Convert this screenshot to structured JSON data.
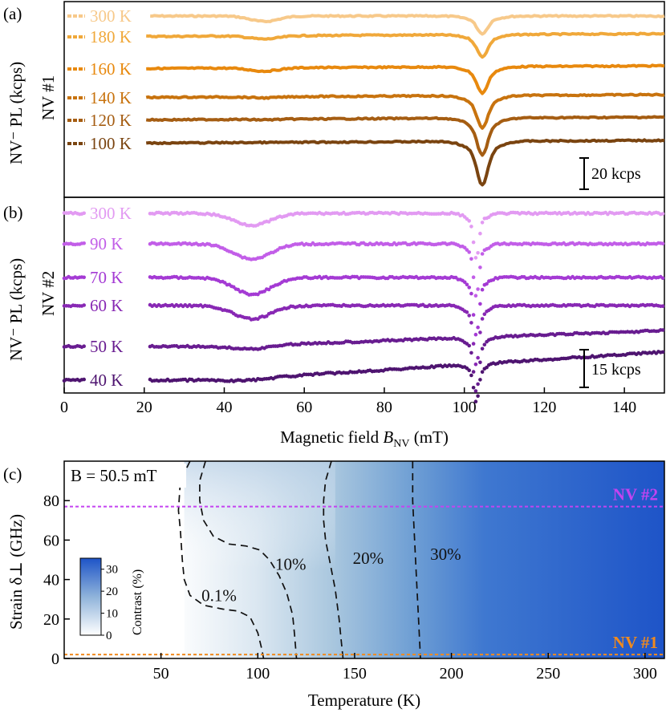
{
  "colors": {
    "nv1": [
      "#f7c98a",
      "#f0a83a",
      "#e8890e",
      "#c8730e",
      "#a55d12",
      "#7a4410"
    ],
    "nv2": [
      "#e29af2",
      "#c25ee8",
      "#a43ad4",
      "#8828b4",
      "#681c90",
      "#4e1470"
    ],
    "nv1_line": "#f08a1e",
    "nv2_line": "#c443f0",
    "heat_low": "#ffffff",
    "heat_high": "#1e54c8"
  },
  "chart_data": [
    {
      "type": "line",
      "panel_label": "(a)",
      "ylabel": "NV⁻ PL (kcps)",
      "side_label": "NV #1",
      "xlim": [
        0,
        150
      ],
      "dip_centers_mT": [
        50,
        104.5
      ],
      "scale_bar": {
        "label": "20 kcps",
        "value": 20
      },
      "series": [
        {
          "name": "300 K",
          "offset": 0,
          "dip1_depth": 5,
          "dip2_depth": 12,
          "slope": 0
        },
        {
          "name": "180 K",
          "offset": -8,
          "dip1_depth": 3,
          "dip2_depth": 15,
          "slope": 0.02
        },
        {
          "name": "160 K",
          "offset": -16,
          "dip1_depth": 3,
          "dip2_depth": 18,
          "slope": 0.02
        },
        {
          "name": "140 K",
          "offset": -25,
          "dip1_depth": 1,
          "dip2_depth": 22,
          "slope": 0.02
        },
        {
          "name": "120 K",
          "offset": -33,
          "dip1_depth": 0.5,
          "dip2_depth": 25,
          "slope": 0.02
        },
        {
          "name": "100 K",
          "offset": -41,
          "dip1_depth": 0,
          "dip2_depth": 30,
          "slope": 0.02
        }
      ]
    },
    {
      "type": "scatter",
      "panel_label": "(b)",
      "ylabel": "NV⁻ PL (kcps)",
      "side_label": "NV #2",
      "xlabel": "Magnetic field B_NV (mT)",
      "xlabel_main": "Magnetic field ",
      "xlabel_var": "B",
      "xlabel_sub": "NV",
      "xlabel_unit": " (mT)",
      "xlim": [
        0,
        150
      ],
      "xticks": [
        0,
        20,
        40,
        60,
        80,
        100,
        120,
        140
      ],
      "xtick_labels": [
        "0",
        "20",
        "40",
        "60",
        "80",
        "100",
        "120",
        "140"
      ],
      "dip_centers_mT": [
        47,
        103
      ],
      "scale_bar": {
        "label": "15 kcps",
        "value": 15
      },
      "series": [
        {
          "name": "300 K",
          "offset": 0,
          "dip1_depth": 7,
          "dip2_depth": 22,
          "slope": 0
        },
        {
          "name": "90 K",
          "offset": -6,
          "dip1_depth": 9,
          "dip2_depth": 25,
          "slope": 0.01
        },
        {
          "name": "70 K",
          "offset": -12,
          "dip1_depth": 10,
          "dip2_depth": 28,
          "slope": 0.02
        },
        {
          "name": "60 K",
          "offset": -18,
          "dip1_depth": 8,
          "dip2_depth": 29,
          "slope": 0.03
        },
        {
          "name": "50 K",
          "offset": -25,
          "dip1_depth": 2,
          "dip2_depth": 26,
          "slope": 0.08
        },
        {
          "name": "40 K",
          "offset": -30,
          "dip1_depth": 1,
          "dip2_depth": 18,
          "slope": 0.12
        }
      ]
    },
    {
      "type": "heatmap",
      "panel_label": "(c)",
      "title": "B = 50.5 mT",
      "xlabel": "Temperature (K)",
      "ylabel": "Strain δ⊥ (GHz)",
      "xlim": [
        0,
        310
      ],
      "ylim": [
        0,
        100
      ],
      "xticks": [
        50,
        100,
        150,
        200,
        250,
        300
      ],
      "xtick_labels": [
        "50",
        "100",
        "150",
        "200",
        "250",
        "300"
      ],
      "yticks": [
        0,
        20,
        40,
        60,
        80
      ],
      "ytick_labels": [
        "0",
        "20",
        "40",
        "60",
        "80"
      ],
      "colorbar": {
        "label": "Contrast (%)",
        "ticks": [
          "0",
          "10",
          "20",
          "30"
        ],
        "max": 35
      },
      "contours": [
        {
          "label": "0.1%",
          "points": [
            [
              65,
              100
            ],
            [
              60,
              90
            ],
            [
              59,
              75
            ],
            [
              60,
              65
            ],
            [
              61,
              50
            ],
            [
              62,
              40
            ],
            [
              65,
              32
            ],
            [
              72,
              27
            ],
            [
              82,
              25
            ],
            [
              90,
              24
            ],
            [
              96,
              21
            ],
            [
              100,
              13
            ],
            [
              102,
              5
            ],
            [
              103,
              0
            ]
          ]
        },
        {
          "label": "10%",
          "points": [
            [
              73,
              100
            ],
            [
              70,
              90
            ],
            [
              70,
              80
            ],
            [
              72,
              70
            ],
            [
              77,
              62
            ],
            [
              85,
              58
            ],
            [
              94,
              57
            ],
            [
              101,
              55
            ],
            [
              106,
              50
            ],
            [
              111,
              42
            ],
            [
              115,
              33
            ],
            [
              118,
              22
            ],
            [
              119,
              12
            ],
            [
              120,
              0
            ]
          ]
        },
        {
          "label": "20%",
          "points": [
            [
              138,
              100
            ],
            [
              135,
              90
            ],
            [
              134,
              80
            ],
            [
              134,
              70
            ],
            [
              135,
              60
            ],
            [
              137,
              50
            ],
            [
              140,
              35
            ],
            [
              142,
              20
            ],
            [
              143,
              10
            ],
            [
              144,
              0
            ]
          ]
        },
        {
          "label": "30%",
          "points": [
            [
              180,
              100
            ],
            [
              180,
              80
            ],
            [
              181,
              60
            ],
            [
              182,
              40
            ],
            [
              183,
              20
            ],
            [
              184,
              0
            ]
          ]
        }
      ],
      "contour_labels": [
        {
          "text": "0.1%",
          "at": [
            80,
            29
          ]
        },
        {
          "text": "10%",
          "at": [
            117,
            45
          ]
        },
        {
          "text": "20%",
          "at": [
            157,
            48
          ]
        },
        {
          "text": "30%",
          "at": [
            197,
            50
          ]
        }
      ],
      "reference_lines": [
        {
          "label": "NV #2",
          "strain": 77
        },
        {
          "label": "NV #1",
          "strain": 2
        }
      ]
    }
  ]
}
